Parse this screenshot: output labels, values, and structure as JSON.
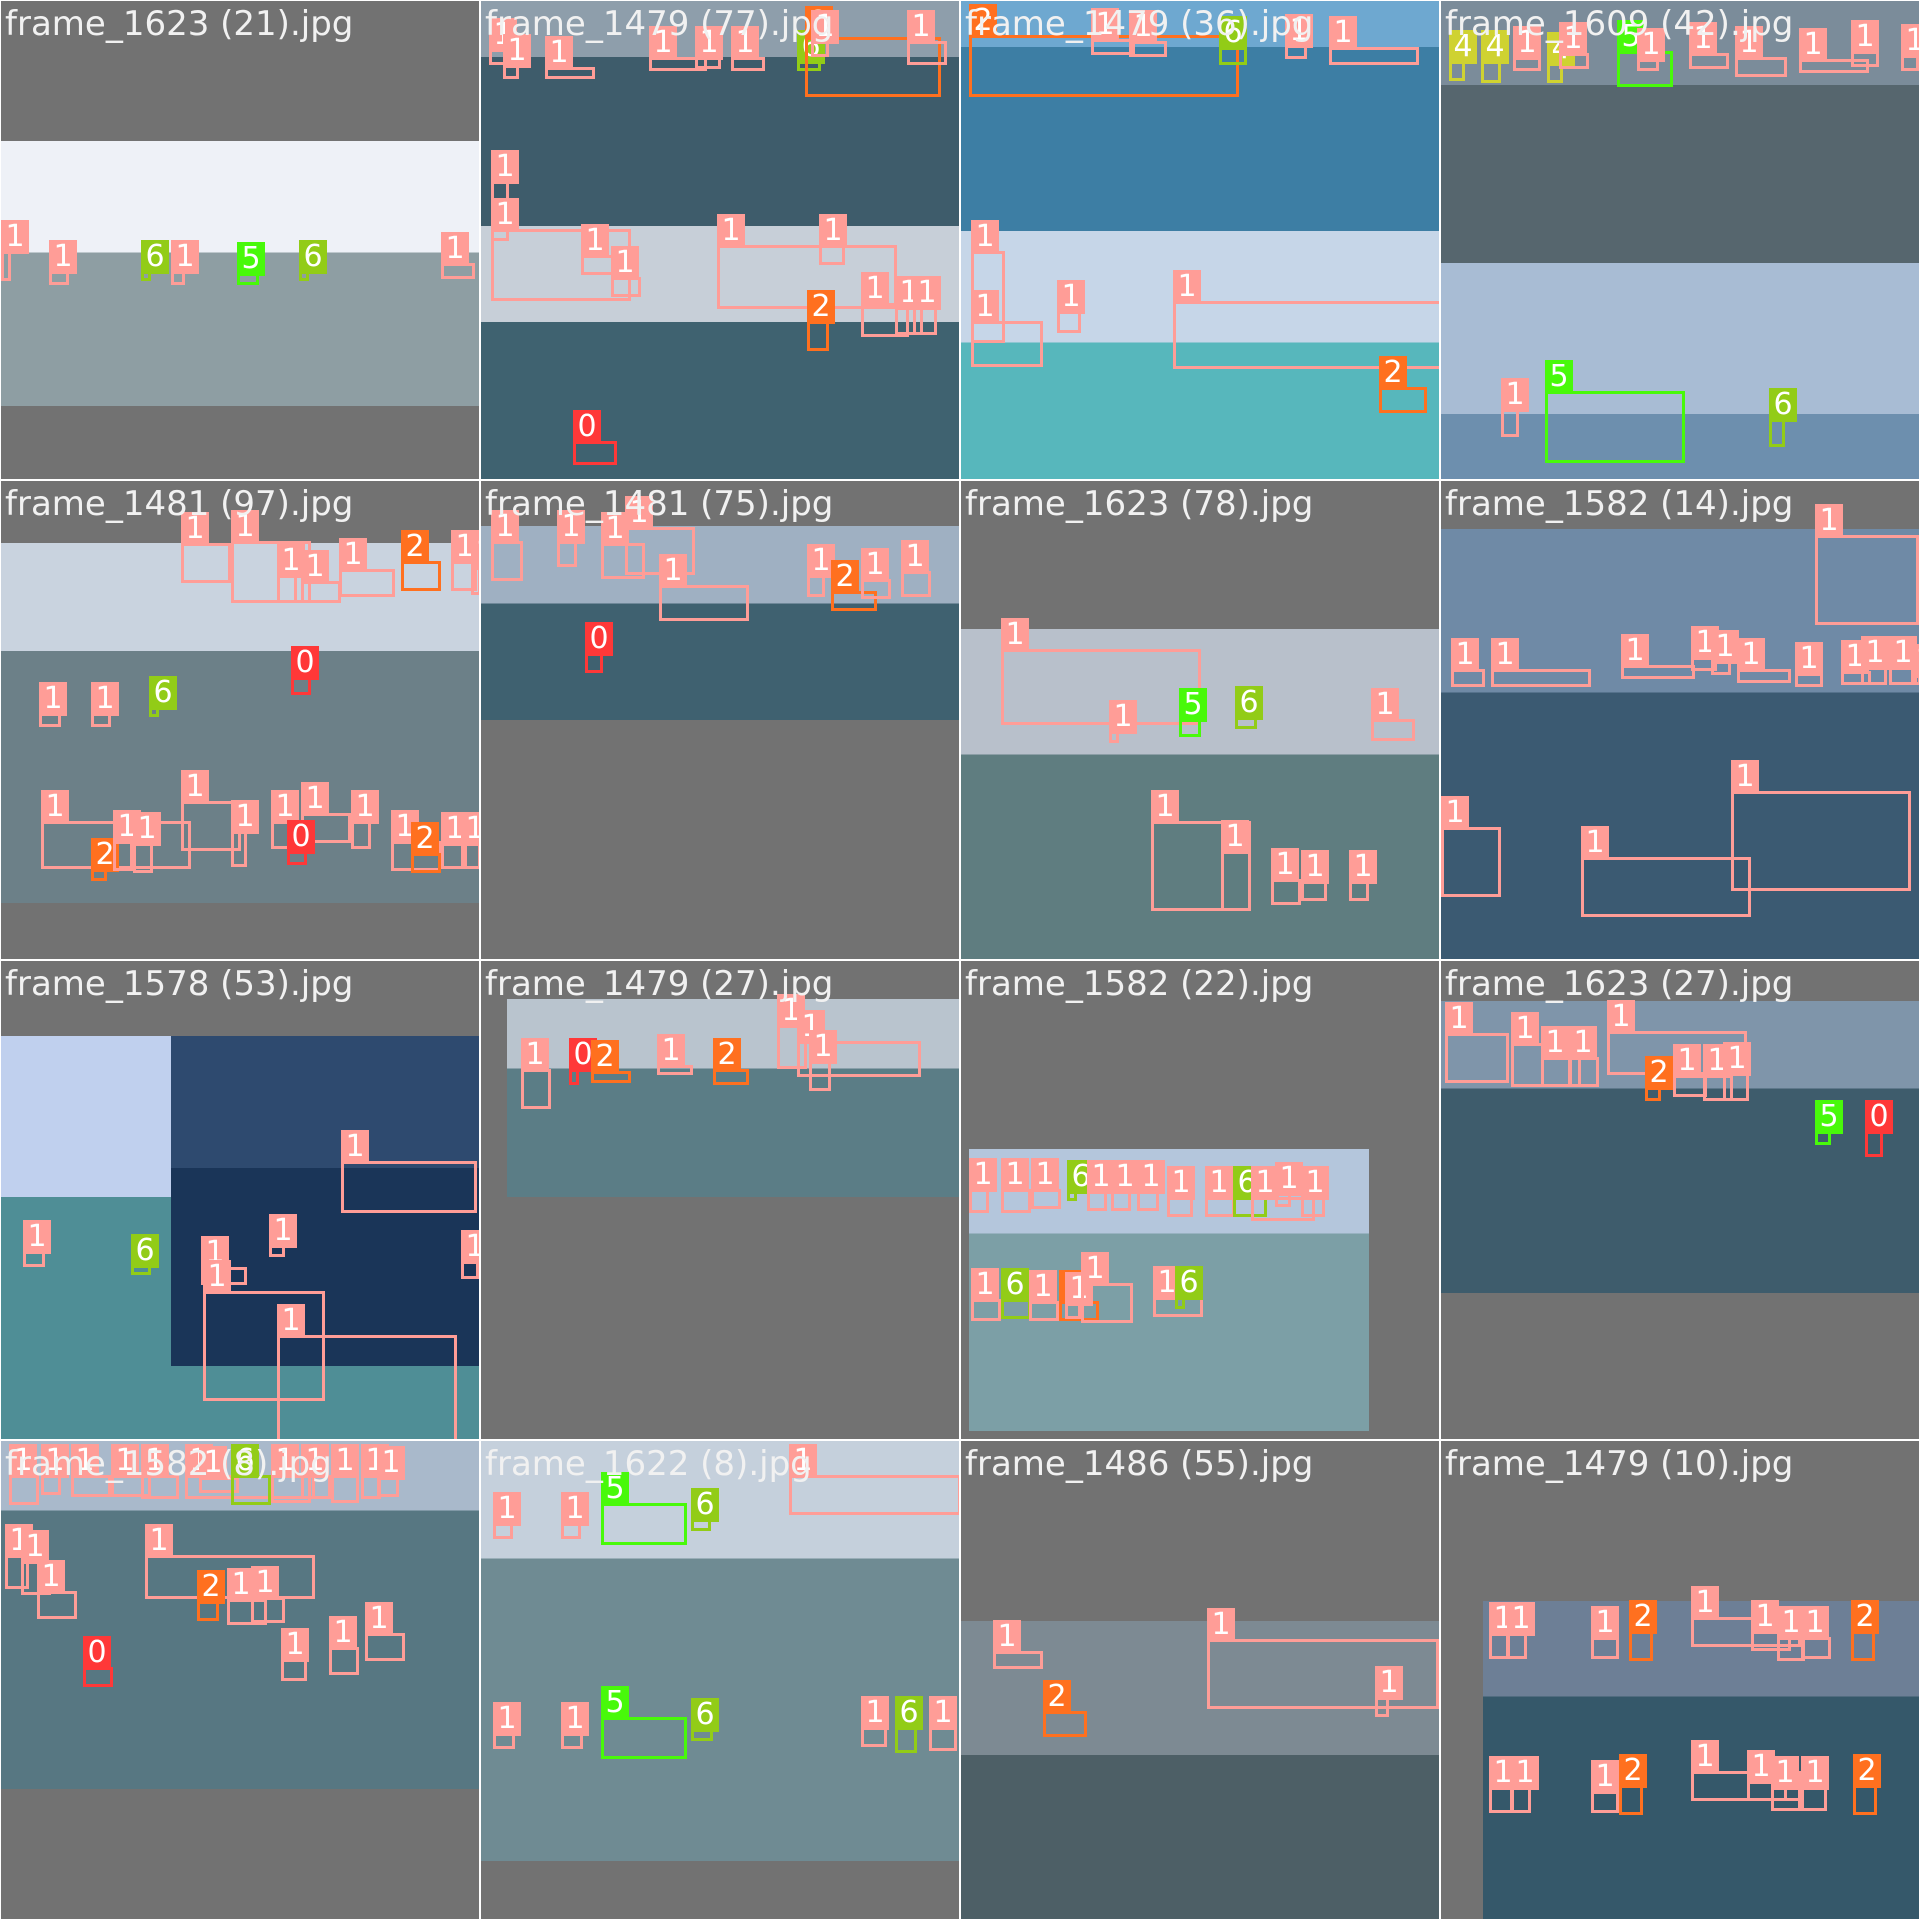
{
  "grid_title": "",
  "class_colors": {
    "0": "#ff3838",
    "1": "#ff9d97",
    "2": "#ff701f",
    "4": "#cfd231",
    "5": "#48f90a",
    "6": "#92cc17"
  },
  "tiles": [
    {
      "filename": "frame_1623 (21).jpg",
      "regions": [
        {
          "sky": "#eef1f7",
          "sea": "#8e9ea3"
        }
      ],
      "boxes": [
        {
          "label": "1"
        },
        {
          "label": "1"
        },
        {
          "label": "6"
        },
        {
          "label": "1"
        },
        {
          "label": "5"
        },
        {
          "label": "6"
        },
        {
          "label": "1"
        }
      ]
    },
    {
      "filename": "frame_1479 (77).jpg",
      "regions": [
        {
          "sky": "#8e9eab",
          "sea": "#3e5c6b"
        },
        {
          "sky": "#c7cfd8",
          "sea": "#3f6270"
        }
      ],
      "boxes": [
        {
          "label": "1"
        },
        {
          "label": "1"
        },
        {
          "label": "1"
        },
        {
          "label": "1"
        },
        {
          "label": "1"
        },
        {
          "label": "1"
        },
        {
          "label": "6"
        },
        {
          "label": "2"
        },
        {
          "label": "1"
        },
        {
          "label": "1"
        },
        {
          "label": "1"
        },
        {
          "label": "1"
        },
        {
          "label": "1"
        },
        {
          "label": "1"
        },
        {
          "label": "1"
        },
        {
          "label": "1"
        },
        {
          "label": "2"
        },
        {
          "label": "1"
        },
        {
          "label": "1"
        },
        {
          "label": "1"
        },
        {
          "label": "0"
        }
      ]
    },
    {
      "filename": "frame_1479 (36).jpg",
      "regions": [
        {
          "sky": "#6ea8d0",
          "sea": "#3d7ea4"
        },
        {
          "sky": "#c6d6e8",
          "sea": "#57b7bc"
        }
      ],
      "boxes": [
        {
          "label": "2"
        },
        {
          "label": "1"
        },
        {
          "label": "1"
        },
        {
          "label": "6"
        },
        {
          "label": "1"
        },
        {
          "label": "1"
        },
        {
          "label": "1"
        },
        {
          "label": "1"
        },
        {
          "label": "1"
        },
        {
          "label": "1"
        },
        {
          "label": "2"
        }
      ]
    },
    {
      "filename": "frame_1609 (42).jpg",
      "regions": [
        {
          "sky": "#7b8c9a",
          "sea": "#56666e"
        },
        {
          "sky": "#a8bcd4",
          "sea": "#6d8fae"
        }
      ],
      "boxes": [
        {
          "label": "4"
        },
        {
          "label": "4"
        },
        {
          "label": "4"
        },
        {
          "label": "1"
        },
        {
          "label": "1"
        },
        {
          "label": "5"
        },
        {
          "label": "1"
        },
        {
          "label": "1"
        },
        {
          "label": "1"
        },
        {
          "label": "1"
        },
        {
          "label": "1"
        },
        {
          "label": "1"
        },
        {
          "label": "5"
        },
        {
          "label": "1"
        },
        {
          "label": "6"
        }
      ]
    },
    {
      "filename": "frame_1481 (97).jpg",
      "regions": [
        {
          "sky": "#c9d3df",
          "sea": "#6c8088"
        }
      ],
      "boxes": [
        {
          "label": "1"
        },
        {
          "label": "1"
        },
        {
          "label": "6"
        },
        {
          "label": "1"
        },
        {
          "label": "1"
        },
        {
          "label": "1"
        },
        {
          "label": "1"
        },
        {
          "label": "1"
        },
        {
          "label": "2"
        },
        {
          "label": "1"
        },
        {
          "label": "1"
        },
        {
          "label": "0"
        },
        {
          "label": "1"
        },
        {
          "label": "2"
        },
        {
          "label": "1"
        },
        {
          "label": "1"
        },
        {
          "label": "1"
        },
        {
          "label": "1"
        },
        {
          "label": "1"
        },
        {
          "label": "1"
        },
        {
          "label": "1"
        },
        {
          "label": "1"
        },
        {
          "label": "2"
        },
        {
          "label": "1"
        },
        {
          "label": "1"
        },
        {
          "label": "0"
        }
      ]
    },
    {
      "filename": "frame_1481 (75).jpg",
      "regions": [
        {
          "sky": "#9fb0c2",
          "sea": "#3f6170"
        }
      ],
      "boxes": [
        {
          "label": "1"
        },
        {
          "label": "1"
        },
        {
          "label": "1"
        },
        {
          "label": "1"
        },
        {
          "label": "1"
        },
        {
          "label": "1"
        },
        {
          "label": "2"
        },
        {
          "label": "1"
        },
        {
          "label": "1"
        },
        {
          "label": "0"
        }
      ]
    },
    {
      "filename": "frame_1623 (78).jpg",
      "regions": [
        {
          "sky": "#b8c0cb",
          "sea": "#5f7d80"
        }
      ],
      "boxes": [
        {
          "label": "1"
        },
        {
          "label": "1"
        },
        {
          "label": "5"
        },
        {
          "label": "6"
        },
        {
          "label": "1"
        },
        {
          "label": "1"
        },
        {
          "label": "1"
        },
        {
          "label": "1"
        },
        {
          "label": "1"
        },
        {
          "label": "1"
        }
      ]
    },
    {
      "filename": "frame_1582 (14).jpg",
      "regions": [
        {
          "sky": "#6f8aa6",
          "sea": "#3b5a72"
        }
      ],
      "boxes": [
        {
          "label": "1"
        },
        {
          "label": "1"
        },
        {
          "label": "1"
        },
        {
          "label": "1"
        },
        {
          "label": "1"
        },
        {
          "label": "1"
        },
        {
          "label": "1"
        },
        {
          "label": "1"
        },
        {
          "label": "1"
        },
        {
          "label": "1"
        },
        {
          "label": "1"
        },
        {
          "label": "1"
        },
        {
          "label": "1"
        },
        {
          "label": "1"
        },
        {
          "label": "1"
        }
      ]
    },
    {
      "filename": "frame_1578 (53).jpg",
      "regions": [
        {
          "sky": "#c0d0ee",
          "sea": "#4f8e96"
        },
        {
          "sky": "#2e4a6f",
          "sea": "#1a3558"
        }
      ],
      "boxes": [
        {
          "label": "1"
        },
        {
          "label": "6"
        },
        {
          "label": "1"
        },
        {
          "label": "1"
        },
        {
          "label": "1"
        },
        {
          "label": "1"
        },
        {
          "label": "1"
        },
        {
          "label": "1"
        }
      ]
    },
    {
      "filename": "frame_1479 (27).jpg",
      "regions": [
        {
          "sky": "#b9c4ce",
          "sea": "#5b7d86"
        }
      ],
      "boxes": [
        {
          "label": "1"
        },
        {
          "label": "0"
        },
        {
          "label": "2"
        },
        {
          "label": "1"
        },
        {
          "label": "2"
        },
        {
          "label": "1"
        },
        {
          "label": "1"
        },
        {
          "label": "1"
        }
      ]
    },
    {
      "filename": "frame_1582 (22).jpg",
      "regions": [
        {
          "sky": "#b4c6dc",
          "sea": "#7c9fa6"
        }
      ],
      "boxes": [
        {
          "label": "1"
        },
        {
          "label": "1"
        },
        {
          "label": "1"
        },
        {
          "label": "6"
        },
        {
          "label": "1"
        },
        {
          "label": "1"
        },
        {
          "label": "1"
        },
        {
          "label": "1"
        },
        {
          "label": "1"
        },
        {
          "label": "6"
        },
        {
          "label": "1"
        },
        {
          "label": "1"
        },
        {
          "label": "1"
        },
        {
          "label": "1"
        },
        {
          "label": "6"
        },
        {
          "label": "1"
        },
        {
          "label": "2"
        },
        {
          "label": "1"
        },
        {
          "label": "1"
        },
        {
          "label": "1"
        },
        {
          "label": "6"
        }
      ]
    },
    {
      "filename": "frame_1623 (27).jpg",
      "regions": [
        {
          "sky": "#7f95aa",
          "sea": "#3e5c6c"
        }
      ],
      "boxes": [
        {
          "label": "1"
        },
        {
          "label": "1"
        },
        {
          "label": "1"
        },
        {
          "label": "1"
        },
        {
          "label": "1"
        },
        {
          "label": "2"
        },
        {
          "label": "1"
        },
        {
          "label": "1"
        },
        {
          "label": "1"
        },
        {
          "label": "5"
        },
        {
          "label": "0"
        }
      ]
    },
    {
      "filename": "frame_1582 (8).jpg",
      "regions": [
        {
          "sky": "#a9b9cb",
          "sea": "#577782"
        },
        {
          "sky": "#d6dde6",
          "sea": "#7b8f96"
        }
      ],
      "boxes": [
        {
          "label": "1"
        },
        {
          "label": "1"
        },
        {
          "label": "1"
        },
        {
          "label": "1"
        },
        {
          "label": "1"
        },
        {
          "label": "1"
        },
        {
          "label": "1"
        },
        {
          "label": "6"
        },
        {
          "label": "1"
        },
        {
          "label": "1"
        },
        {
          "label": "1"
        },
        {
          "label": "1"
        },
        {
          "label": "1"
        },
        {
          "label": "1"
        },
        {
          "label": "1"
        },
        {
          "label": "1"
        },
        {
          "label": "1"
        },
        {
          "label": "2"
        },
        {
          "label": "1"
        },
        {
          "label": "1"
        },
        {
          "label": "0"
        },
        {
          "label": "1"
        },
        {
          "label": "1"
        },
        {
          "label": "1"
        }
      ]
    },
    {
      "filename": "frame_1622 (8).jpg",
      "regions": [
        {
          "sky": "#c5d0dc",
          "sea": "#6f8b93"
        }
      ],
      "boxes": [
        {
          "label": "1"
        },
        {
          "label": "1"
        },
        {
          "label": "5"
        },
        {
          "label": "6"
        },
        {
          "label": "1"
        },
        {
          "label": "1"
        },
        {
          "label": "1"
        },
        {
          "label": "5"
        },
        {
          "label": "6"
        },
        {
          "label": "1"
        },
        {
          "label": "6"
        },
        {
          "label": "1"
        }
      ]
    },
    {
      "filename": "frame_1486 (55).jpg",
      "regions": [
        {
          "sky": "#7d8a93",
          "sea": "#4d5f66"
        }
      ],
      "boxes": [
        {
          "label": "1"
        },
        {
          "label": "1"
        },
        {
          "label": "2"
        },
        {
          "label": "1"
        }
      ]
    },
    {
      "filename": "frame_1479 (10).jpg",
      "regions": [
        {
          "sky": "#6d7f96",
          "sea": "#35586a"
        }
      ],
      "boxes": [
        {
          "label": "1"
        },
        {
          "label": "1"
        },
        {
          "label": "1"
        },
        {
          "label": "2"
        },
        {
          "label": "1"
        },
        {
          "label": "1"
        },
        {
          "label": "1"
        },
        {
          "label": "1"
        },
        {
          "label": "2"
        },
        {
          "label": "1"
        },
        {
          "label": "1"
        },
        {
          "label": "1"
        },
        {
          "label": "2"
        },
        {
          "label": "1"
        },
        {
          "label": "1"
        },
        {
          "label": "1"
        },
        {
          "label": "1"
        },
        {
          "label": "2"
        }
      ]
    }
  ]
}
